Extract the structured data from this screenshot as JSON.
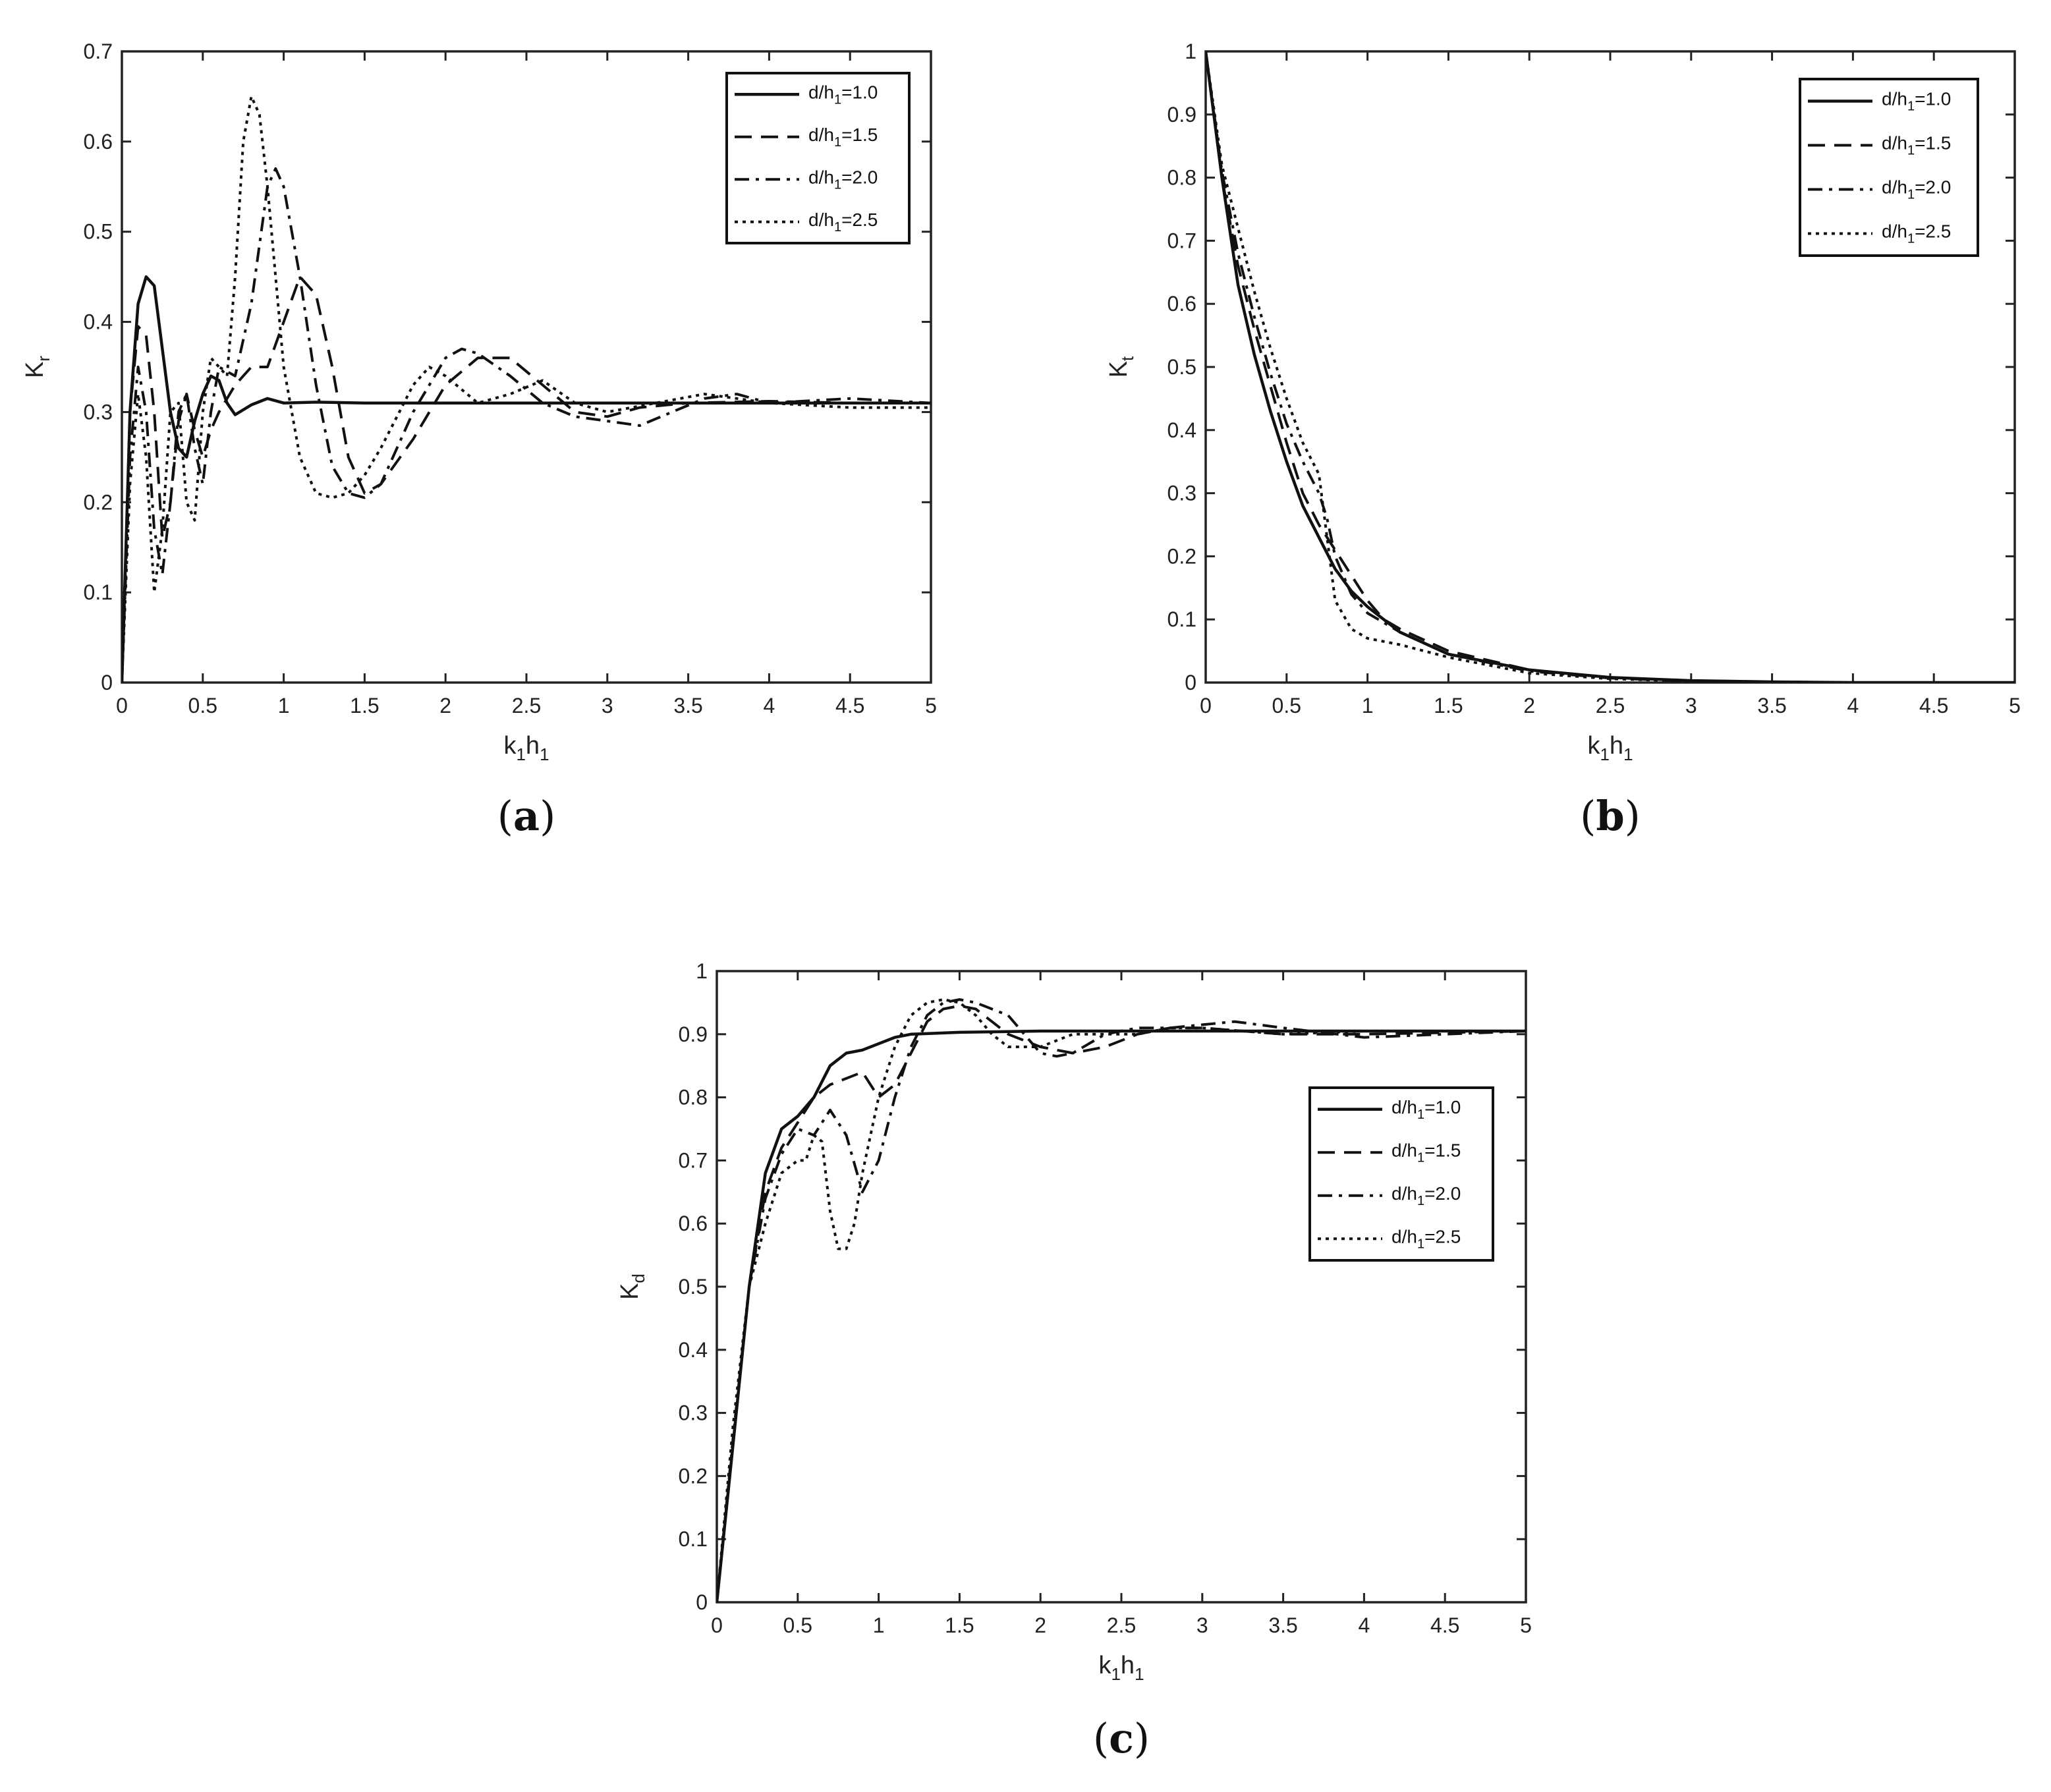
{
  "chart_data": [
    {
      "panel": "(a)",
      "panel_letter": "a",
      "type": "line",
      "ylabel": "K_r",
      "ylabel_main": "K",
      "ylabel_sub": "r",
      "xlabel": "k_1h_1",
      "xlim": [
        0,
        5
      ],
      "ylim": [
        0,
        0.7
      ],
      "xticks": [
        0,
        0.5,
        1,
        1.5,
        2,
        2.5,
        3,
        3.5,
        4,
        4.5,
        5
      ],
      "yticks": [
        0,
        0.1,
        0.2,
        0.3,
        0.4,
        0.5,
        0.6,
        0.7
      ],
      "xtick_labels": [
        "0",
        "0.5",
        "1",
        "1.5",
        "2",
        "2.5",
        "3",
        "3.5",
        "4",
        "4.5",
        "5"
      ],
      "ytick_labels": [
        "0",
        "0.1",
        "0.2",
        "0.3",
        "0.4",
        "0.5",
        "0.6",
        "0.7"
      ],
      "grid": false,
      "legend_position": "top-right",
      "series": [
        {
          "name": "d/h_1=1.0",
          "style": "solid",
          "x": [
            0,
            0.05,
            0.1,
            0.15,
            0.2,
            0.25,
            0.3,
            0.35,
            0.4,
            0.45,
            0.5,
            0.55,
            0.6,
            0.65,
            0.7,
            0.8,
            0.9,
            1.0,
            1.2,
            1.5,
            2,
            3,
            4,
            5
          ],
          "y": [
            0,
            0.3,
            0.42,
            0.45,
            0.44,
            0.37,
            0.3,
            0.26,
            0.25,
            0.29,
            0.32,
            0.34,
            0.335,
            0.31,
            0.297,
            0.308,
            0.315,
            0.31,
            0.311,
            0.31,
            0.31,
            0.31,
            0.31,
            0.31
          ]
        },
        {
          "name": "d/h_1=1.5",
          "style": "dashed",
          "x": [
            0,
            0.05,
            0.1,
            0.15,
            0.2,
            0.25,
            0.3,
            0.35,
            0.4,
            0.45,
            0.5,
            0.55,
            0.6,
            0.7,
            0.8,
            0.9,
            1.0,
            1.1,
            1.2,
            1.3,
            1.4,
            1.5,
            1.6,
            1.8,
            2.0,
            2.2,
            2.4,
            2.6,
            2.8,
            3.0,
            3.2,
            3.5,
            4,
            4.5,
            5
          ],
          "y": [
            0,
            0.3,
            0.395,
            0.385,
            0.3,
            0.16,
            0.2,
            0.29,
            0.32,
            0.28,
            0.25,
            0.28,
            0.3,
            0.33,
            0.35,
            0.35,
            0.4,
            0.45,
            0.43,
            0.35,
            0.25,
            0.21,
            0.22,
            0.27,
            0.33,
            0.36,
            0.36,
            0.33,
            0.3,
            0.295,
            0.305,
            0.31,
            0.312,
            0.31,
            0.31
          ]
        },
        {
          "name": "d/h_1=2.0",
          "style": "dashdot",
          "x": [
            0,
            0.05,
            0.1,
            0.15,
            0.2,
            0.25,
            0.3,
            0.35,
            0.4,
            0.45,
            0.5,
            0.55,
            0.6,
            0.7,
            0.8,
            0.9,
            0.95,
            1.0,
            1.1,
            1.2,
            1.3,
            1.4,
            1.5,
            1.6,
            1.8,
            2.0,
            2.1,
            2.2,
            2.4,
            2.6,
            2.8,
            3.0,
            3.2,
            3.4,
            3.6,
            3.8,
            4,
            4.5,
            5
          ],
          "y": [
            0,
            0.25,
            0.35,
            0.3,
            0.17,
            0.12,
            0.2,
            0.3,
            0.32,
            0.26,
            0.22,
            0.3,
            0.35,
            0.34,
            0.42,
            0.55,
            0.57,
            0.55,
            0.45,
            0.33,
            0.24,
            0.21,
            0.205,
            0.22,
            0.3,
            0.36,
            0.37,
            0.365,
            0.34,
            0.31,
            0.295,
            0.29,
            0.285,
            0.3,
            0.315,
            0.32,
            0.31,
            0.315,
            0.31
          ]
        },
        {
          "name": "d/h_1=2.5",
          "style": "dotted",
          "x": [
            0,
            0.05,
            0.1,
            0.15,
            0.2,
            0.25,
            0.3,
            0.35,
            0.4,
            0.45,
            0.5,
            0.55,
            0.6,
            0.65,
            0.7,
            0.75,
            0.8,
            0.85,
            0.9,
            1.0,
            1.1,
            1.2,
            1.3,
            1.4,
            1.5,
            1.6,
            1.8,
            1.9,
            2.0,
            2.2,
            2.4,
            2.6,
            2.8,
            3.0,
            3.3,
            3.6,
            4,
            4.5,
            5
          ],
          "y": [
            0,
            0.22,
            0.32,
            0.25,
            0.1,
            0.17,
            0.3,
            0.31,
            0.2,
            0.18,
            0.3,
            0.36,
            0.35,
            0.34,
            0.45,
            0.6,
            0.65,
            0.63,
            0.55,
            0.35,
            0.25,
            0.21,
            0.205,
            0.21,
            0.23,
            0.26,
            0.33,
            0.35,
            0.34,
            0.31,
            0.32,
            0.335,
            0.31,
            0.3,
            0.31,
            0.32,
            0.31,
            0.305,
            0.305
          ]
        }
      ]
    },
    {
      "panel": "(b)",
      "panel_letter": "b",
      "type": "line",
      "ylabel": "K_t",
      "ylabel_main": "K",
      "ylabel_sub": "t",
      "xlabel": "k_1h_1",
      "xlim": [
        0,
        5
      ],
      "ylim": [
        0,
        1
      ],
      "xticks": [
        0,
        0.5,
        1,
        1.5,
        2,
        2.5,
        3,
        3.5,
        4,
        4.5,
        5
      ],
      "yticks": [
        0,
        0.1,
        0.2,
        0.3,
        0.4,
        0.5,
        0.6,
        0.7,
        0.8,
        0.9,
        1
      ],
      "xtick_labels": [
        "0",
        "0.5",
        "1",
        "1.5",
        "2",
        "2.5",
        "3",
        "3.5",
        "4",
        "4.5",
        "5"
      ],
      "ytick_labels": [
        "0",
        "0.1",
        "0.2",
        "0.3",
        "0.4",
        "0.5",
        "0.6",
        "0.7",
        "0.8",
        "0.9",
        "1"
      ],
      "grid": false,
      "legend_position": "top-right",
      "series": [
        {
          "name": "d/h_1=1.0",
          "style": "solid",
          "x": [
            0,
            0.1,
            0.2,
            0.3,
            0.4,
            0.5,
            0.6,
            0.7,
            0.8,
            0.9,
            1.0,
            1.2,
            1.5,
            2,
            2.5,
            3,
            3.5,
            4,
            5
          ],
          "y": [
            1,
            0.8,
            0.63,
            0.52,
            0.43,
            0.35,
            0.28,
            0.23,
            0.18,
            0.145,
            0.12,
            0.08,
            0.045,
            0.02,
            0.008,
            0.003,
            0.001,
            0,
            0
          ]
        },
        {
          "name": "d/h_1=1.5",
          "style": "dashed",
          "x": [
            0,
            0.1,
            0.2,
            0.3,
            0.4,
            0.5,
            0.6,
            0.7,
            0.8,
            0.9,
            1.0,
            1.1,
            1.2,
            1.5,
            2,
            2.5,
            3,
            3.5,
            4,
            5
          ],
          "y": [
            1,
            0.8,
            0.66,
            0.56,
            0.47,
            0.38,
            0.3,
            0.25,
            0.21,
            0.17,
            0.13,
            0.1,
            0.085,
            0.05,
            0.02,
            0.008,
            0.003,
            0.001,
            0,
            0
          ]
        },
        {
          "name": "d/h_1=2.0",
          "style": "dashdot",
          "x": [
            0,
            0.1,
            0.2,
            0.3,
            0.4,
            0.5,
            0.6,
            0.7,
            0.75,
            0.8,
            0.9,
            1.0,
            1.1,
            1.2,
            1.5,
            2,
            2.5,
            3,
            3.5,
            4,
            5
          ],
          "y": [
            1,
            0.81,
            0.68,
            0.58,
            0.49,
            0.41,
            0.35,
            0.3,
            0.26,
            0.2,
            0.14,
            0.11,
            0.095,
            0.08,
            0.045,
            0.018,
            0.007,
            0.002,
            0.001,
            0,
            0
          ]
        },
        {
          "name": "d/h_1=2.5",
          "style": "dotted",
          "x": [
            0,
            0.1,
            0.2,
            0.3,
            0.4,
            0.5,
            0.6,
            0.7,
            0.75,
            0.8,
            0.9,
            1.0,
            1.1,
            1.2,
            1.5,
            2,
            2.5,
            3,
            3.5,
            4,
            5
          ],
          "y": [
            1,
            0.82,
            0.72,
            0.62,
            0.53,
            0.45,
            0.38,
            0.33,
            0.23,
            0.13,
            0.085,
            0.07,
            0.065,
            0.06,
            0.04,
            0.015,
            0.006,
            0.002,
            0.001,
            0,
            0
          ]
        }
      ]
    },
    {
      "panel": "(c)",
      "panel_letter": "c",
      "type": "line",
      "ylabel": "K_d",
      "ylabel_main": "K",
      "ylabel_sub": "d",
      "xlabel": "k_1h_1",
      "xlim": [
        0,
        5
      ],
      "ylim": [
        0,
        1
      ],
      "xticks": [
        0,
        0.5,
        1,
        1.5,
        2,
        2.5,
        3,
        3.5,
        4,
        4.5,
        5
      ],
      "yticks": [
        0,
        0.1,
        0.2,
        0.3,
        0.4,
        0.5,
        0.6,
        0.7,
        0.8,
        0.9,
        1
      ],
      "xtick_labels": [
        "0",
        "0.5",
        "1",
        "1.5",
        "2",
        "2.5",
        "3",
        "3.5",
        "4",
        "4.5",
        "5"
      ],
      "ytick_labels": [
        "0",
        "0.1",
        "0.2",
        "0.3",
        "0.4",
        "0.5",
        "0.6",
        "0.7",
        "0.8",
        "0.9",
        "1"
      ],
      "grid": false,
      "legend_position": "right",
      "series": [
        {
          "name": "d/h_1=1.0",
          "style": "solid",
          "x": [
            0,
            0.1,
            0.2,
            0.3,
            0.4,
            0.5,
            0.6,
            0.7,
            0.8,
            0.9,
            1.0,
            1.1,
            1.2,
            1.5,
            2,
            3,
            4,
            5
          ],
          "y": [
            0,
            0.25,
            0.5,
            0.68,
            0.75,
            0.77,
            0.8,
            0.85,
            0.87,
            0.875,
            0.885,
            0.895,
            0.9,
            0.903,
            0.905,
            0.905,
            0.905,
            0.905
          ]
        },
        {
          "name": "d/h_1=1.5",
          "style": "dashed",
          "x": [
            0,
            0.1,
            0.2,
            0.3,
            0.4,
            0.5,
            0.6,
            0.7,
            0.8,
            0.9,
            1.0,
            1.1,
            1.2,
            1.3,
            1.4,
            1.5,
            1.6,
            1.7,
            1.8,
            2.0,
            2.2,
            2.4,
            2.6,
            2.8,
            3.0,
            3.5,
            4,
            5
          ],
          "y": [
            0,
            0.25,
            0.5,
            0.65,
            0.72,
            0.76,
            0.8,
            0.82,
            0.83,
            0.84,
            0.8,
            0.82,
            0.87,
            0.92,
            0.94,
            0.945,
            0.94,
            0.92,
            0.9,
            0.88,
            0.87,
            0.88,
            0.9,
            0.91,
            0.91,
            0.9,
            0.9,
            0.905
          ]
        },
        {
          "name": "d/h_1=2.0",
          "style": "dashdot",
          "x": [
            0,
            0.1,
            0.2,
            0.3,
            0.4,
            0.5,
            0.6,
            0.7,
            0.8,
            0.9,
            1.0,
            1.1,
            1.2,
            1.3,
            1.4,
            1.5,
            1.6,
            1.7,
            1.8,
            1.9,
            2.0,
            2.1,
            2.2,
            2.4,
            2.6,
            2.8,
            3.0,
            3.2,
            3.5,
            4,
            4.5,
            5
          ],
          "y": [
            0,
            0.26,
            0.5,
            0.64,
            0.71,
            0.75,
            0.74,
            0.78,
            0.74,
            0.65,
            0.7,
            0.8,
            0.88,
            0.93,
            0.95,
            0.955,
            0.95,
            0.94,
            0.93,
            0.9,
            0.87,
            0.865,
            0.87,
            0.9,
            0.91,
            0.91,
            0.915,
            0.92,
            0.91,
            0.895,
            0.9,
            0.905
          ]
        },
        {
          "name": "d/h_1=2.5",
          "style": "dotted",
          "x": [
            0,
            0.1,
            0.2,
            0.3,
            0.4,
            0.5,
            0.55,
            0.6,
            0.65,
            0.7,
            0.75,
            0.8,
            0.85,
            0.9,
            1.0,
            1.1,
            1.2,
            1.3,
            1.4,
            1.5,
            1.6,
            1.7,
            1.8,
            2.0,
            2.2,
            2.4,
            2.6,
            2.8,
            3.0,
            3.5,
            4,
            5
          ],
          "y": [
            0,
            0.28,
            0.5,
            0.6,
            0.68,
            0.7,
            0.7,
            0.74,
            0.73,
            0.62,
            0.56,
            0.56,
            0.6,
            0.68,
            0.8,
            0.88,
            0.93,
            0.95,
            0.955,
            0.95,
            0.93,
            0.9,
            0.88,
            0.88,
            0.9,
            0.9,
            0.9,
            0.91,
            0.91,
            0.9,
            0.905,
            0.905
          ]
        }
      ]
    }
  ],
  "legend_prefix": "d/h",
  "legend_sub": "1",
  "legend_values": [
    "=1.0",
    "=1.5",
    "=2.0",
    "=2.5"
  ],
  "xlabel_parts": {
    "k": "k",
    "k_sub": "1",
    "h": "h",
    "h_sub": "1"
  }
}
